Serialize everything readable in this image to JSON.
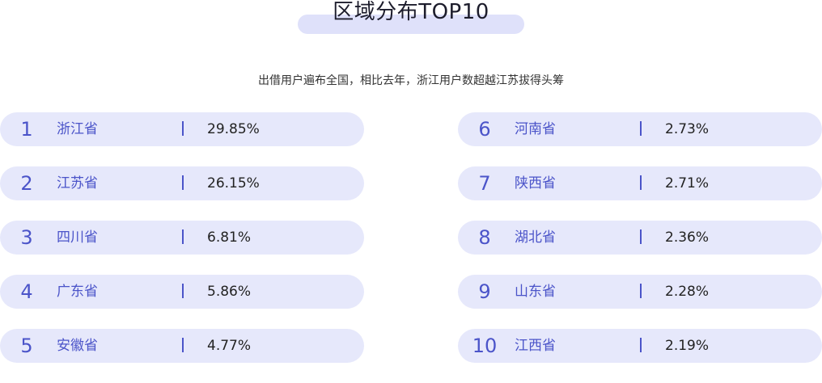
{
  "title": "区域分布TOP10",
  "subtitle": "出借用户遍布全国，相比去年，浙江用户数超越江苏拔得头筹",
  "colors": {
    "accent": "#4b54c9",
    "row_bg": "#e6e8fb",
    "title_bar": "#dfe1fa"
  },
  "left_rankings": [
    {
      "rank": "1",
      "province": "浙江省",
      "percent": "29.85%"
    },
    {
      "rank": "2",
      "province": "江苏省",
      "percent": "26.15%"
    },
    {
      "rank": "3",
      "province": "四川省",
      "percent": "6.81%"
    },
    {
      "rank": "4",
      "province": "广东省",
      "percent": "5.86%"
    },
    {
      "rank": "5",
      "province": "安徽省",
      "percent": "4.77%"
    }
  ],
  "right_rankings": [
    {
      "rank": "6",
      "province": "河南省",
      "percent": "2.73%"
    },
    {
      "rank": "7",
      "province": "陕西省",
      "percent": "2.71%"
    },
    {
      "rank": "8",
      "province": "湖北省",
      "percent": "2.36%"
    },
    {
      "rank": "9",
      "province": "山东省",
      "percent": "2.28%"
    },
    {
      "rank": "10",
      "province": "江西省",
      "percent": "2.19%"
    }
  ]
}
